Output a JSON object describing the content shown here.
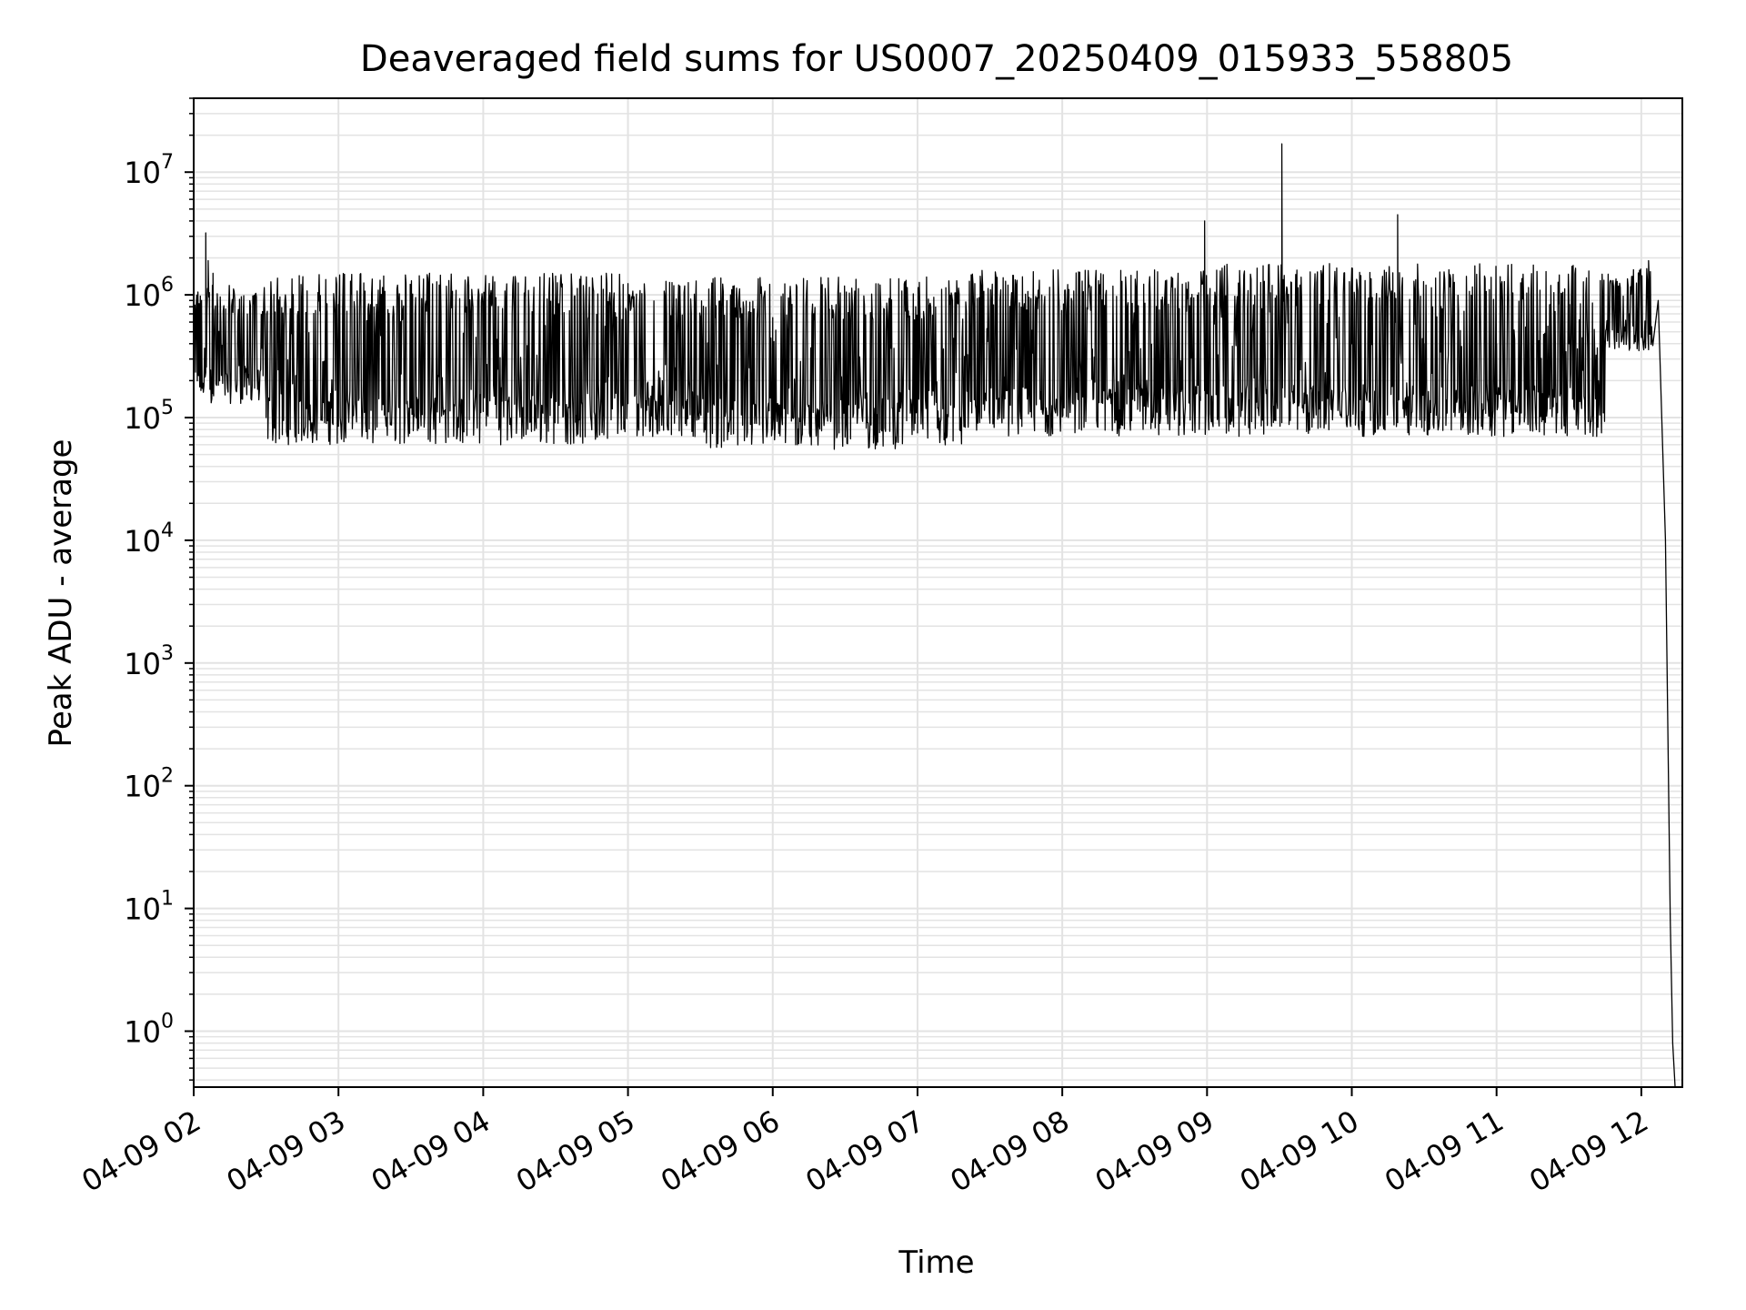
{
  "chart_data": {
    "type": "line",
    "title": "Deaveraged field sums for US0007_20250409_015933_558805",
    "xlabel": "Time",
    "ylabel": "Peak ADU - average",
    "yscale": "log",
    "ylim": [
      0.35,
      40000000
    ],
    "xlim": [
      "04-09 02:00",
      "04-09 12:17"
    ],
    "grid": true,
    "line_color": "#000000",
    "grid_color": "#e3e3e3",
    "x_ticks": [
      "04-09 02",
      "04-09 03",
      "04-09 04",
      "04-09 05",
      "04-09 06",
      "04-09 07",
      "04-09 08",
      "04-09 09",
      "04-09 10",
      "04-09 11",
      "04-09 12"
    ],
    "y_ticks": [
      {
        "base": "10",
        "exp": "0",
        "value": 1
      },
      {
        "base": "10",
        "exp": "1",
        "value": 10
      },
      {
        "base": "10",
        "exp": "2",
        "value": 100
      },
      {
        "base": "10",
        "exp": "3",
        "value": 1000
      },
      {
        "base": "10",
        "exp": "4",
        "value": 10000
      },
      {
        "base": "10",
        "exp": "5",
        "value": 100000
      },
      {
        "base": "10",
        "exp": "6",
        "value": 1000000
      },
      {
        "base": "10",
        "exp": "7",
        "value": 10000000
      }
    ],
    "series": [
      {
        "points": [
          [
            "04-09 02:00",
            550000
          ],
          [
            "04-09 02:03",
            600000
          ],
          [
            "04-09 02:05",
            3200000
          ],
          [
            "04-09 02:06",
            1900000
          ],
          [
            "04-09 02:08",
            1500000
          ],
          [
            "04-09 02:10",
            550000
          ],
          [
            "04-09 02:15",
            250000
          ],
          [
            "04-09 02:20",
            180000
          ],
          [
            "04-09 02:30",
            100000
          ],
          [
            "04-09 02:40",
            80000
          ],
          [
            "04-09 02:50",
            90000
          ],
          [
            "04-09 03:00",
            85000
          ],
          [
            "04-09 03:30",
            120000
          ],
          [
            "04-09 04:00",
            150000
          ],
          [
            "04-09 04:30",
            170000
          ],
          [
            "04-09 05:00",
            130000
          ],
          [
            "04-09 05:30",
            110000
          ],
          [
            "04-09 06:00",
            80000
          ],
          [
            "04-09 06:30",
            75000
          ],
          [
            "04-09 07:00",
            75000
          ],
          [
            "04-09 07:30",
            90000
          ],
          [
            "04-09 08:00",
            150000
          ],
          [
            "04-09 08:30",
            250000
          ],
          [
            "04-09 08:59",
            4000000
          ],
          [
            "04-09 09:31",
            17000000
          ],
          [
            "04-09 10:00",
            400000
          ],
          [
            "04-09 10:19",
            4500000
          ],
          [
            "04-09 10:30",
            400000
          ],
          [
            "04-09 11:00",
            400000
          ],
          [
            "04-09 11:30",
            400000
          ],
          [
            "04-09 11:55",
            700000
          ],
          [
            "04-09 12:03",
            1900000
          ],
          [
            "04-09 12:07",
            900000
          ],
          [
            "04-09 12:10",
            10000
          ],
          [
            "04-09 12:12",
            8
          ],
          [
            "04-09 12:13",
            0.8
          ],
          [
            "04-09 12:14",
            0.3
          ]
        ],
        "envelope": {
          "note": "dense spiky signal between these bounds",
          "segments": [
            {
              "from": "04-09 02:00",
              "to": "04-09 02:30",
              "low": 130000,
              "high": 1200000
            },
            {
              "from": "04-09 02:30",
              "to": "04-09 05:00",
              "low": 60000,
              "high": 1500000
            },
            {
              "from": "04-09 05:00",
              "to": "04-09 05:30",
              "low": 70000,
              "high": 1300000
            },
            {
              "from": "04-09 05:30",
              "to": "04-09 07:20",
              "low": 55000,
              "high": 1400000
            },
            {
              "from": "04-09 07:20",
              "to": "04-09 09:00",
              "low": 70000,
              "high": 1600000
            },
            {
              "from": "04-09 09:00",
              "to": "04-09 11:45",
              "low": 70000,
              "high": 1800000
            },
            {
              "from": "04-09 11:45",
              "to": "04-09 12:05",
              "low": 350000,
              "high": 1700000
            }
          ]
        }
      }
    ]
  }
}
